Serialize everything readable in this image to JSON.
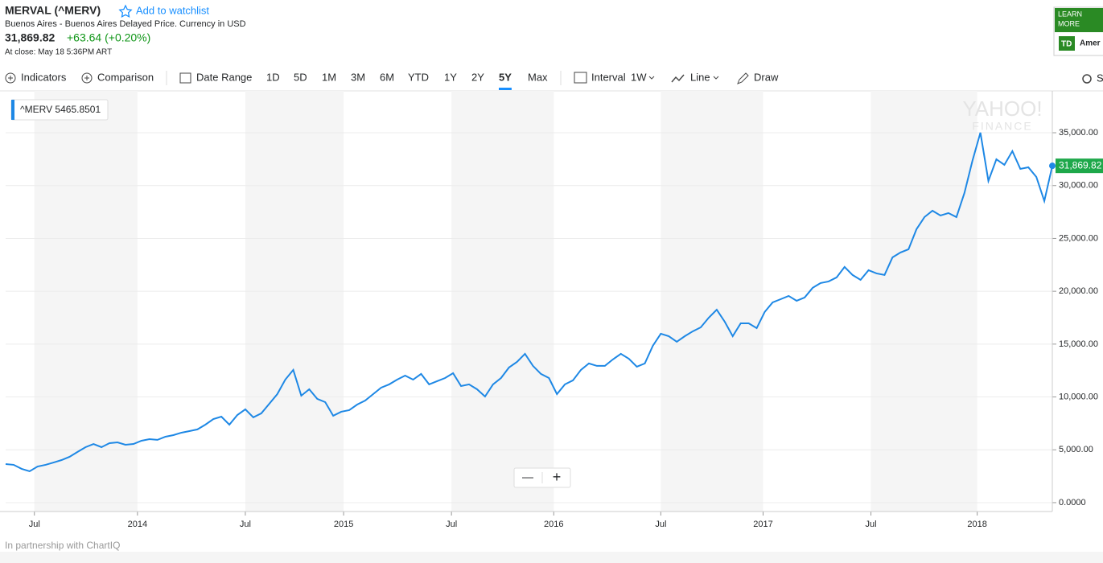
{
  "header": {
    "title": "MERVAL (^MERV)",
    "watchlist": "Add to watchlist",
    "subtitle": "Buenos Aires - Buenos Aires Delayed Price. Currency in USD",
    "price": "31,869.82",
    "change": "+63.64 (+0.20%)",
    "close_note": "At close: May 18 5:36PM ART"
  },
  "ad": {
    "line1": "LEARN",
    "line2": "MORE",
    "logo": "TD",
    "brand": "Amer"
  },
  "toolbar": {
    "indicators": "Indicators",
    "comparison": "Comparison",
    "date_range": "Date Range",
    "ranges": [
      "1D",
      "5D",
      "1M",
      "3M",
      "6M",
      "YTD",
      "1Y",
      "2Y",
      "5Y",
      "Max"
    ],
    "selected": 8,
    "interval": "Interval",
    "interval_value": "1W",
    "chart_type": "Line",
    "draw": "Draw",
    "settings": "S"
  },
  "chart_data": {
    "type": "line",
    "color": "#1e88e5",
    "legend_label": "^MERV 5465.8501",
    "last_value_label": "31,869.82",
    "watermark": [
      "YAHOO!",
      "FINANCE"
    ],
    "values": [
      3650,
      3580,
      3200,
      2970,
      3420,
      3580,
      3800,
      4030,
      4340,
      4800,
      5250,
      5550,
      5250,
      5630,
      5700,
      5480,
      5550,
      5860,
      6010,
      5940,
      6240,
      6390,
      6620,
      6770,
      6930,
      7380,
      7910,
      8140,
      7380,
      8290,
      8830,
      8070,
      8450,
      9360,
      10270,
      11640,
      12560,
      10120,
      10730,
      9820,
      9510,
      8220,
      8600,
      8750,
      9280,
      9660,
      10270,
      10880,
      11190,
      11640,
      12020,
      11640,
      12180,
      11190,
      11490,
      11790,
      12250,
      11030,
      11190,
      10730,
      10040,
      11190,
      11790,
      12790,
      13320,
      14080,
      12940,
      12180,
      11790,
      10270,
      11190,
      11570,
      12560,
      13170,
      12940,
      12940,
      13550,
      14080,
      13620,
      12860,
      13170,
      14840,
      15980,
      15750,
      15220,
      15750,
      16210,
      16590,
      17500,
      18260,
      17120,
      15750,
      16970,
      16970,
      16510,
      18040,
      18950,
      19250,
      19560,
      19100,
      19410,
      20320,
      20780,
      20930,
      21310,
      22300,
      21540,
      21080,
      21990,
      21690,
      21540,
      23210,
      23670,
      23970,
      25870,
      27020,
      27620,
      27170,
      27400,
      27020,
      29300,
      32340,
      35010,
      30440,
      32490,
      31960,
      33260,
      31580,
      31730,
      30820,
      28540,
      31870
    ],
    "xlim": [
      0,
      131
    ],
    "xticks": [
      {
        "value": 3.6,
        "label": "Jul"
      },
      {
        "value": 16.5,
        "label": "2014"
      },
      {
        "value": 30.0,
        "label": "Jul"
      },
      {
        "value": 42.3,
        "label": "2015"
      },
      {
        "value": 55.8,
        "label": "Jul"
      },
      {
        "value": 68.6,
        "label": "2016"
      },
      {
        "value": 82.0,
        "label": "Jul"
      },
      {
        "value": 94.8,
        "label": "2017"
      },
      {
        "value": 108.3,
        "label": "Jul"
      },
      {
        "value": 121.6,
        "label": "2018"
      }
    ],
    "ylim": [
      -840,
      38960
    ],
    "yticks": [
      {
        "value": 0,
        "label": "0.0000"
      },
      {
        "value": 5000,
        "label": "5,000.00"
      },
      {
        "value": 10000,
        "label": "10,000.00"
      },
      {
        "value": 15000,
        "label": "15,000.00"
      },
      {
        "value": 20000,
        "label": "20,000.00"
      },
      {
        "value": 25000,
        "label": "25,000.00"
      },
      {
        "value": 30000,
        "label": "30,000.00"
      },
      {
        "value": 35000,
        "label": "35,000.00"
      }
    ],
    "grid": true,
    "zoom": [
      "—",
      "+"
    ]
  },
  "footer": "In partnership with ChartIQ"
}
